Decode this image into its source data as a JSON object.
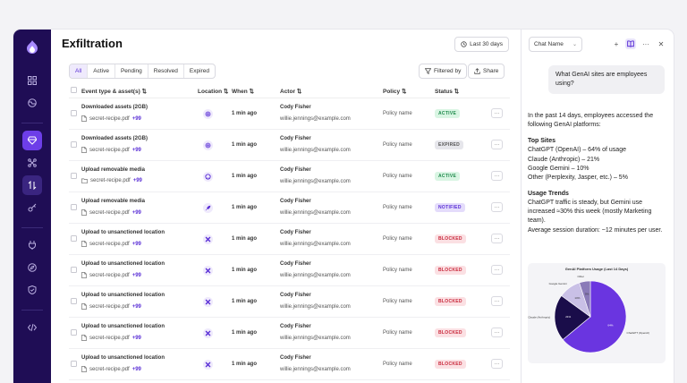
{
  "page": {
    "title": "Exfiltration",
    "range_label": "Last 30 days"
  },
  "filters": {
    "tabs": [
      "All",
      "Active",
      "Pending",
      "Resolved",
      "Expired"
    ],
    "active": "All",
    "filtered_by": "Filtered by",
    "share": "Share"
  },
  "table": {
    "headers": {
      "event": "Event type & asset(s)",
      "location": "Location",
      "when": "When",
      "actor": "Actor",
      "policy": "Policy",
      "status": "Status"
    },
    "rows": [
      {
        "event": "Downloaded assets (2GB)",
        "file": "secret-recipe.pdf",
        "more": "+99",
        "loc_icon": "openai-icon",
        "when": "1 min ago",
        "actor": "Cody Fisher",
        "email": "willie.jennings@example.com",
        "policy": "Policy name",
        "status": "ACTIVE"
      },
      {
        "event": "Downloaded assets (2GB)",
        "file": "secret-recipe.pdf",
        "more": "+99",
        "loc_icon": "openai-icon",
        "when": "1 min ago",
        "actor": "Cody Fisher",
        "email": "willie.jennings@example.com",
        "policy": "Policy name",
        "status": "EXPIRED"
      },
      {
        "event": "Upload removable media",
        "file": "secret-recipe.pdf",
        "more": "+99",
        "loc_icon": "github-icon",
        "file_icon": "folder",
        "when": "1 min ago",
        "actor": "Cody Fisher",
        "email": "willie.jennings@example.com",
        "policy": "Policy name",
        "status": "ACTIVE"
      },
      {
        "event": "Upload removable media",
        "file": "secret-recipe.pdf",
        "more": "+99",
        "loc_icon": "rocket-icon",
        "when": "1 min ago",
        "actor": "Cody Fisher",
        "email": "willie.jennings@example.com",
        "policy": "Policy name",
        "status": "NOTIFIED"
      },
      {
        "event": "Upload to unsanctioned location",
        "file": "secret-recipe.pdf",
        "more": "+99",
        "loc_icon": "x-icon",
        "when": "1 min ago",
        "actor": "Cody Fisher",
        "email": "willie.jennings@example.com",
        "policy": "Policy name",
        "status": "BLOCKED"
      },
      {
        "event": "Upload to unsanctioned location",
        "file": "secret-recipe.pdf",
        "more": "+99",
        "loc_icon": "x-icon",
        "when": "1 min ago",
        "actor": "Cody Fisher",
        "email": "willie.jennings@example.com",
        "policy": "Policy name",
        "status": "BLOCKED"
      },
      {
        "event": "Upload to unsanctioned location",
        "file": "secret-recipe.pdf",
        "more": "+99",
        "loc_icon": "x-icon",
        "when": "1 min ago",
        "actor": "Cody Fisher",
        "email": "willie.jennings@example.com",
        "policy": "Policy name",
        "status": "BLOCKED"
      },
      {
        "event": "Upload to unsanctioned location",
        "file": "secret-recipe.pdf",
        "more": "+99",
        "loc_icon": "x-icon",
        "when": "1 min ago",
        "actor": "Cody Fisher",
        "email": "willie.jennings@example.com",
        "policy": "Policy name",
        "status": "BLOCKED"
      },
      {
        "event": "Upload to unsanctioned location",
        "file": "secret-recipe.pdf",
        "more": "+99",
        "loc_icon": "x-icon",
        "when": "1 min ago",
        "actor": "Cody Fisher",
        "email": "willie.jennings@example.com",
        "policy": "Policy name",
        "status": "BLOCKED"
      }
    ]
  },
  "status_colors": {
    "ACTIVE": {
      "bg": "#d9f5e3",
      "fg": "#1f8a4c"
    },
    "EXPIRED": {
      "bg": "#e6e6eb",
      "fg": "#555555"
    },
    "NOTIFIED": {
      "bg": "#e4dcfb",
      "fg": "#5b30d6"
    },
    "BLOCKED": {
      "bg": "#fbe0e3",
      "fg": "#c8283b"
    }
  },
  "colors": {
    "rail_bg": "#1f0d55",
    "accent": "#6d3ee8",
    "link": "#5b30d6"
  },
  "chat": {
    "select_label": "Chat Name",
    "question": "What GenAI sites are employees using?",
    "intro": "In the past 14 days, employees accessed the following GenAI platforms:",
    "top_sites_heading": "Top Sites",
    "top_sites": [
      "ChatGPT (OpenAI) – 64% of usage",
      "Claude (Anthropic) – 21%",
      "Google Gemini – 10%",
      "Other (Perplexity, Jasper, etc.) – 5%"
    ],
    "trends_heading": "Usage Trends",
    "trends_text": "ChatGPT traffic is steady, but Gemini use increased ≈30% this week (mostly Marketing team).",
    "session_text": "Average session duration: ~12 minutes per user."
  },
  "chart_data": {
    "type": "pie",
    "title": "GenAI Platform Usage (Last 14 Days)",
    "categories": [
      "ChatGPT (OpenAI)",
      "Claude (Anthropic)",
      "Google Gemini",
      "Other"
    ],
    "values": [
      64,
      21,
      10,
      5
    ],
    "value_labels": [
      "64%",
      "21%",
      "10%",
      "5%"
    ],
    "slice_labels": [
      "ChatGPT (OpenAI)",
      "Claude (Anthropic)",
      "Google Gemini",
      "Other"
    ],
    "colors": [
      "#6a35e0",
      "#1a0d4a",
      "#c9c0e6",
      "#8a7bb8"
    ]
  }
}
